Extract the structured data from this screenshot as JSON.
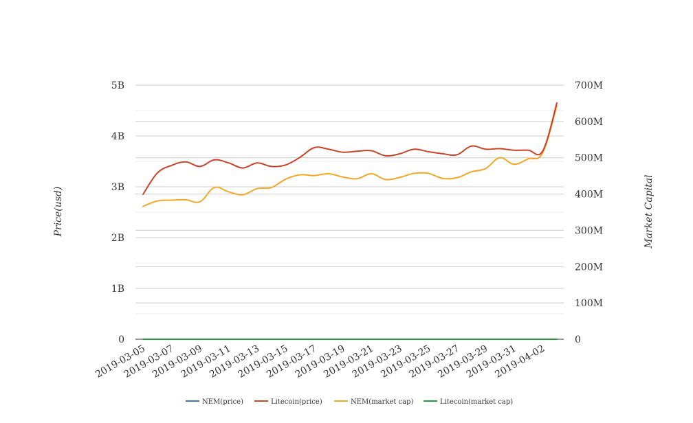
{
  "chart_data": {
    "type": "line",
    "x": [
      "2019-03-05",
      "2019-03-06",
      "2019-03-07",
      "2019-03-08",
      "2019-03-09",
      "2019-03-10",
      "2019-03-11",
      "2019-03-12",
      "2019-03-13",
      "2019-03-14",
      "2019-03-15",
      "2019-03-16",
      "2019-03-17",
      "2019-03-18",
      "2019-03-19",
      "2019-03-20",
      "2019-03-21",
      "2019-03-22",
      "2019-03-23",
      "2019-03-24",
      "2019-03-25",
      "2019-03-26",
      "2019-03-27",
      "2019-03-28",
      "2019-03-29",
      "2019-03-30",
      "2019-03-31",
      "2019-04-01",
      "2019-04-02",
      "2019-04-03"
    ],
    "x_tick_labels": [
      "2019-03-05",
      "2019-03-07",
      "2019-03-09",
      "2019-03-11",
      "2019-03-13",
      "2019-03-15",
      "2019-03-17",
      "2019-03-19",
      "2019-03-21",
      "2019-03-23",
      "2019-03-25",
      "2019-03-27",
      "2019-03-29",
      "2019-03-31",
      "2019-04-02"
    ],
    "y_left": {
      "label": "Price(usd)",
      "range": [
        0,
        5000000000
      ],
      "ticks": [
        0,
        1000000000,
        2000000000,
        3000000000,
        4000000000,
        5000000000
      ],
      "tick_labels": [
        "0",
        "1B",
        "2B",
        "3B",
        "4B",
        "5B"
      ]
    },
    "y_right": {
      "label": "Market Capital",
      "range": [
        0,
        700000000
      ],
      "ticks": [
        0,
        100000000,
        200000000,
        300000000,
        400000000,
        500000000,
        600000000,
        700000000
      ],
      "tick_labels": [
        "0",
        "100M",
        "200M",
        "300M",
        "400M",
        "500M",
        "600M",
        "700M"
      ]
    },
    "series": [
      {
        "name": "NEM(price)",
        "color": "#4472c4",
        "axis": "left",
        "values": [
          0,
          0,
          0,
          0,
          0,
          0,
          0,
          0,
          0,
          0,
          0,
          0,
          0,
          0,
          0,
          0,
          0,
          0,
          0,
          0,
          0,
          0,
          0,
          0,
          0,
          0,
          0,
          0,
          0,
          0
        ]
      },
      {
        "name": "Litecoin(price)",
        "color": "#cc4125",
        "axis": "left",
        "values": [
          2850000000,
          3270000000,
          3420000000,
          3490000000,
          3400000000,
          3530000000,
          3470000000,
          3370000000,
          3470000000,
          3400000000,
          3430000000,
          3580000000,
          3770000000,
          3740000000,
          3680000000,
          3700000000,
          3710000000,
          3610000000,
          3650000000,
          3740000000,
          3690000000,
          3650000000,
          3630000000,
          3800000000,
          3740000000,
          3750000000,
          3720000000,
          3720000000,
          3700000000,
          4650000000
        ]
      },
      {
        "name": "NEM(market cap)",
        "color": "#f5a623",
        "axis": "right",
        "values": [
          366000000,
          381000000,
          383000000,
          384000000,
          379000000,
          418000000,
          406000000,
          398000000,
          415000000,
          418000000,
          441000000,
          453000000,
          451000000,
          456000000,
          447000000,
          442000000,
          456000000,
          440000000,
          446000000,
          457000000,
          457000000,
          443000000,
          445000000,
          461000000,
          470000000,
          500000000,
          482000000,
          497000000,
          513000000,
          643000000
        ]
      },
      {
        "name": "Litecoin(market cap)",
        "color": "#1e9e3a",
        "axis": "right",
        "values": [
          0,
          0,
          0,
          0,
          0,
          0,
          0,
          0,
          0,
          0,
          0,
          0,
          0,
          0,
          0,
          0,
          0,
          0,
          0,
          0,
          0,
          0,
          0,
          0,
          0,
          0,
          0,
          0,
          0,
          0
        ]
      }
    ],
    "grid": true,
    "legend_position": "bottom"
  }
}
